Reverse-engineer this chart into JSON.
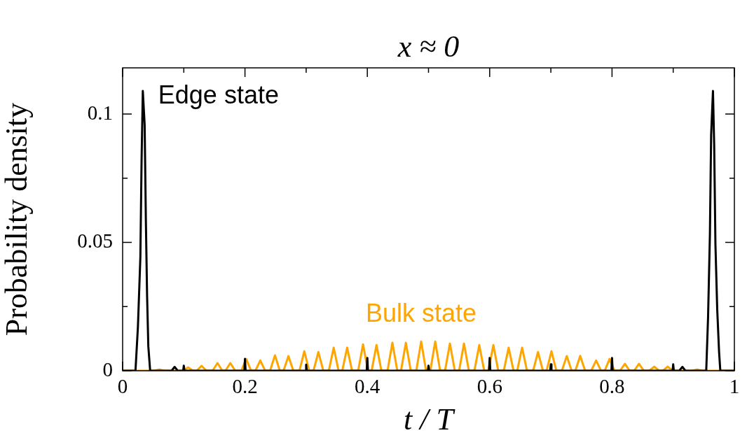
{
  "chart_data": {
    "type": "line",
    "title": "x ≈ 0",
    "xlabel": "t / T",
    "ylabel": "Probability density",
    "xlim": [
      0,
      1
    ],
    "ylim": [
      0,
      0.118
    ],
    "xticks": [
      0,
      {
        "value": 0.1,
        "label": null
      },
      0.2,
      {
        "value": 0.3,
        "label": null
      },
      0.4,
      {
        "value": 0.5,
        "label": null
      },
      0.6,
      {
        "value": 0.7,
        "label": null
      },
      0.8,
      {
        "value": 0.9,
        "label": null
      },
      1
    ],
    "yticks": [
      0,
      {
        "value": 0.025,
        "label": null
      },
      0.05,
      {
        "value": 0.075,
        "label": null
      },
      0.1
    ],
    "legend": "top left",
    "marker": "none",
    "line_style": "solid",
    "series": [
      {
        "name": "Edge state",
        "color": "#000000",
        "x": [
          0,
          0.021,
          0.025,
          0.029,
          0.031,
          0.033,
          0.036,
          0.038,
          0.04,
          0.042,
          0.045,
          0.08,
          0.085,
          0.09,
          0.099,
          0.1,
          0.101,
          0.199,
          0.2,
          0.201,
          0.299,
          0.3,
          0.301,
          0.399,
          0.4,
          0.401,
          0.499,
          0.5,
          0.501,
          0.599,
          0.6,
          0.601,
          0.699,
          0.7,
          0.701,
          0.799,
          0.8,
          0.801,
          0.899,
          0.9,
          0.901,
          0.91,
          0.915,
          0.92,
          0.954,
          0.957,
          0.96,
          0.962,
          0.965,
          0.967,
          0.969,
          0.972,
          0.975,
          0.977,
          1
        ],
        "values": [
          0,
          0,
          0.0171,
          0.0443,
          0.0823,
          0.109,
          0.0959,
          0.0584,
          0.0291,
          0.0095,
          0,
          0,
          0.0015,
          0,
          0,
          0.002,
          0,
          0,
          0.0046,
          0,
          0,
          0.0024,
          0,
          0,
          0.005,
          0,
          0,
          0.002,
          0,
          0,
          0.005,
          0,
          0,
          0.0025,
          0,
          0,
          0.005,
          0,
          0,
          0.0025,
          0,
          0,
          0.0015,
          0,
          0,
          0.0209,
          0.053,
          0.0918,
          0.109,
          0.0878,
          0.0495,
          0.0236,
          0.0073,
          0,
          0
        ]
      },
      {
        "name": "Bulk state",
        "color": "#ffa500",
        "x": [
          0,
          0.052,
          0.06,
          0.068,
          0.099,
          0.107,
          0.115,
          0.121,
          0.129,
          0.137,
          0.147,
          0.155,
          0.163,
          0.168,
          0.176,
          0.184,
          0.194,
          0.202,
          0.21,
          0.217,
          0.225,
          0.233,
          0.241,
          0.249,
          0.257,
          0.263,
          0.271,
          0.279,
          0.289,
          0.297,
          0.305,
          0.312,
          0.32,
          0.328,
          0.337,
          0.345,
          0.353,
          0.359,
          0.367,
          0.375,
          0.385,
          0.393,
          0.401,
          0.407,
          0.415,
          0.423,
          0.433,
          0.441,
          0.449,
          0.455,
          0.463,
          0.471,
          0.48,
          0.488,
          0.496,
          0.503,
          0.511,
          0.519,
          0.527,
          0.535,
          0.543,
          0.55,
          0.558,
          0.566,
          0.575,
          0.583,
          0.591,
          0.598,
          0.606,
          0.614,
          0.623,
          0.631,
          0.639,
          0.645,
          0.653,
          0.661,
          0.671,
          0.679,
          0.687,
          0.693,
          0.701,
          0.709,
          0.718,
          0.726,
          0.734,
          0.74,
          0.748,
          0.756,
          0.766,
          0.774,
          0.782,
          0.788,
          0.796,
          0.804,
          0.813,
          0.821,
          0.829,
          0.836,
          0.844,
          0.852,
          0.861,
          0.869,
          0.877,
          0.883,
          0.891,
          0.899,
          0.931,
          0.939,
          0.947,
          1
        ],
        "values": [
          0,
          0,
          0.0005,
          0,
          0,
          0.0013,
          0,
          0,
          0.0019,
          0,
          0,
          0.003,
          0,
          0,
          0.003,
          0,
          0,
          0.0046,
          0,
          0,
          0.004,
          0,
          0,
          0.006,
          0,
          0,
          0.0057,
          0,
          0,
          0.0076,
          0,
          0,
          0.0073,
          0,
          0,
          0.009,
          0,
          0,
          0.009,
          0,
          0,
          0.0103,
          0,
          0,
          0.01,
          0,
          0,
          0.0109,
          0,
          0,
          0.0109,
          0,
          0,
          0.0114,
          0,
          0,
          0.0114,
          0,
          0,
          0.0106,
          0,
          0,
          0.0106,
          0,
          0,
          0.01,
          0,
          0,
          0.01,
          0,
          0,
          0.009,
          0,
          0,
          0.009,
          0,
          0,
          0.0073,
          0,
          0,
          0.0076,
          0,
          0,
          0.0057,
          0,
          0,
          0.0058,
          0,
          0,
          0.004,
          0,
          0,
          0.0046,
          0,
          0,
          0.0027,
          0,
          0,
          0.0027,
          0,
          0,
          0.0016,
          0,
          0,
          0.0016,
          0,
          0,
          0.0005,
          0,
          0
        ]
      }
    ]
  }
}
